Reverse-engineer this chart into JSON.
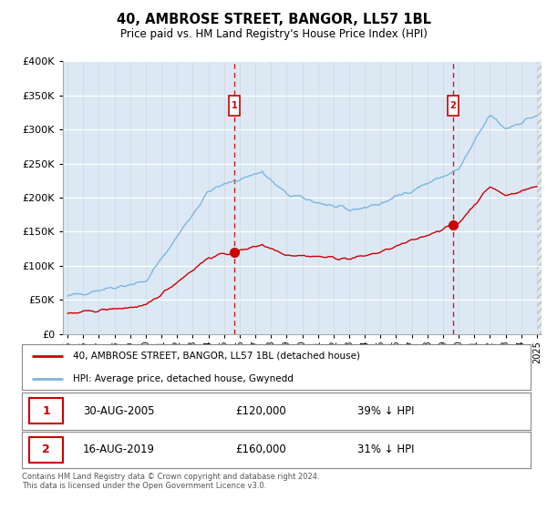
{
  "title": "40, AMBROSE STREET, BANGOR, LL57 1BL",
  "subtitle": "Price paid vs. HM Land Registry's House Price Index (HPI)",
  "hpi_label": "HPI: Average price, detached house, Gwynedd",
  "price_label": "40, AMBROSE STREET, BANGOR, LL57 1BL (detached house)",
  "footer": "Contains HM Land Registry data © Crown copyright and database right 2024.\nThis data is licensed under the Open Government Licence v3.0.",
  "sale1_date": "30-AUG-2005",
  "sale1_price": 120000,
  "sale1_pct": "39% ↓ HPI",
  "sale1_year": 2005.67,
  "sale2_date": "16-AUG-2019",
  "sale2_price": 160000,
  "sale2_pct": "31% ↓ HPI",
  "sale2_year": 2019.63,
  "hpi_color": "#7ab8e0",
  "price_color": "#cc0000",
  "background_color": "#dce9f5",
  "ylim": [
    0,
    400000
  ],
  "xlim_start": 1994.7,
  "xlim_end": 2025.3,
  "ytick_interval": 50000
}
